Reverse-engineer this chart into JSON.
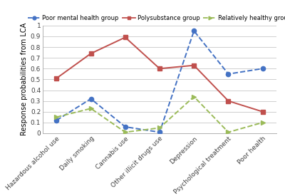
{
  "categories": [
    "Hazardous alcohol use",
    "Daily smoking",
    "Cannabis use",
    "Other illicit drugs use",
    "Depression",
    "Psychological treatment",
    "Poor health"
  ],
  "poor_mental_health": [
    0.12,
    0.32,
    0.06,
    0.01,
    0.95,
    0.55,
    0.6
  ],
  "polysubstance": [
    0.51,
    0.74,
    0.89,
    0.6,
    0.63,
    0.3,
    0.2
  ],
  "relatively_healthy": [
    0.15,
    0.23,
    0.01,
    0.05,
    0.34,
    0.01,
    0.1
  ],
  "poor_mental_health_color": "#4472c4",
  "polysubstance_color": "#c0504d",
  "relatively_healthy_color": "#9bbb59",
  "ylabel": "Response probabilities from LCA",
  "ylim": [
    0,
    1.0
  ],
  "yticks": [
    0,
    0.1,
    0.2,
    0.3,
    0.4,
    0.5,
    0.6,
    0.7,
    0.8,
    0.9,
    1
  ],
  "ytick_labels": [
    "0",
    "0.1",
    "0.2",
    "0.3",
    "0.4",
    "0.5",
    "0.6",
    "0.7",
    "0.8",
    "0.9",
    "1"
  ],
  "legend_labels": [
    "Poor mental health group",
    "Polysubstance group",
    "Relatively healthy group"
  ],
  "background_color": "#ffffff",
  "grid_color": "#c8c8c8"
}
